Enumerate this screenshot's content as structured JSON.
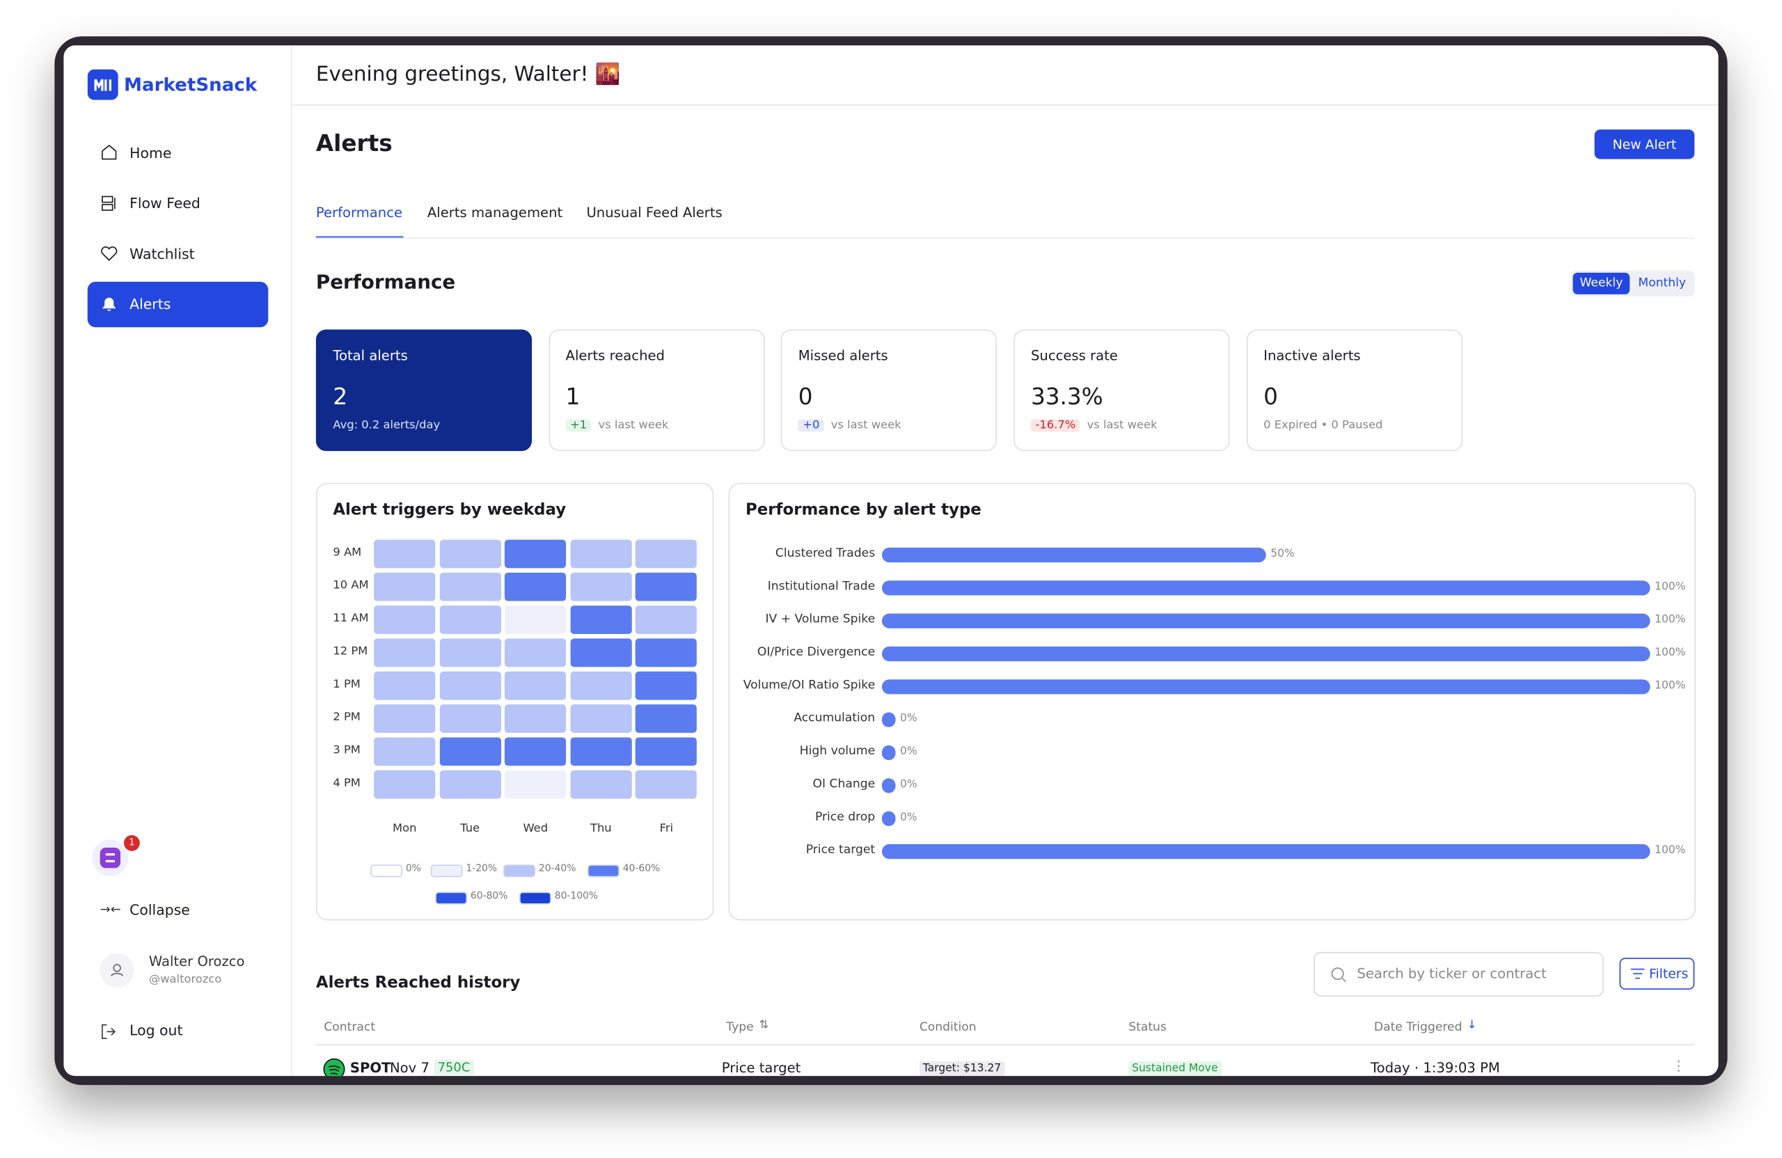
{
  "sidebar": {
    "logo": "MarketSnack",
    "nav": [
      "Home",
      "Flow Feed",
      "Watchlist",
      "Alerts"
    ],
    "badge": "1",
    "collapse": "Collapse",
    "user": {
      "name": "Walter Orozco",
      "handle": "@waltorozco"
    },
    "logout": "Log out"
  },
  "header": {
    "greeting": "Evening greetings, Walter! 🌇"
  },
  "page": {
    "title": "Alerts",
    "new_alert": "New Alert",
    "tabs": [
      "Performance",
      "Alerts management",
      "Unusual Feed Alerts"
    ]
  },
  "performance": {
    "title": "Performance",
    "toggle": [
      "Weekly",
      "Monthly"
    ],
    "cards": [
      {
        "title": "Total alerts",
        "value": "2",
        "sub": "Avg: 0.2 alerts/day"
      },
      {
        "title": "Alerts reached",
        "value": "1",
        "delta": "+1",
        "sub": "vs last week"
      },
      {
        "title": "Missed alerts",
        "value": "0",
        "delta": "+0",
        "sub": "vs last week"
      },
      {
        "title": "Success rate",
        "value": "33.3%",
        "delta": "-16.7%",
        "sub": "vs last week"
      },
      {
        "title": "Inactive alerts",
        "value": "0",
        "sub": "0 Expired • 0 Paused"
      }
    ]
  },
  "heatmap": {
    "title": "Alert triggers by weekday",
    "rows": [
      "9 AM",
      "10 AM",
      "11 AM",
      "12 PM",
      "1 PM",
      "2 PM",
      "3 PM",
      "4 PM"
    ],
    "days": [
      "Mon",
      "Tue",
      "Wed",
      "Thu",
      "Fri"
    ],
    "levels": [
      [
        2,
        2,
        3,
        2,
        2
      ],
      [
        2,
        2,
        3,
        2,
        3
      ],
      [
        2,
        2,
        1,
        3,
        2
      ],
      [
        2,
        2,
        2,
        3,
        3
      ],
      [
        2,
        2,
        2,
        2,
        3
      ],
      [
        2,
        2,
        2,
        2,
        3
      ],
      [
        2,
        3,
        3,
        3,
        3
      ],
      [
        2,
        2,
        1,
        2,
        2
      ]
    ],
    "legend": [
      {
        "label": "0%",
        "color": "#ffffff"
      },
      {
        "label": "1-20%",
        "color": "#eef1fb"
      },
      {
        "label": "20-40%",
        "color": "#b6c4f8"
      },
      {
        "label": "40-60%",
        "color": "#5a7cf0"
      },
      {
        "label": "60-80%",
        "color": "#2c52e6"
      },
      {
        "label": "80-100%",
        "color": "#1d40d6"
      }
    ]
  },
  "alert_types": {
    "title": "Performance by alert type",
    "color": "#5a7cf0",
    "categories": [
      "Clustered Trades",
      "Institutional Trade",
      "IV + Volume Spike",
      "OI/Price Divergence",
      "Volume/OI Ratio Spike",
      "Accumulation",
      "High volume",
      "OI Change",
      "Price drop",
      "Price target"
    ],
    "values": [
      50,
      100,
      100,
      100,
      100,
      0,
      0,
      0,
      0,
      100
    ],
    "value_labels": [
      "50%",
      "100%",
      "100%",
      "100%",
      "100%",
      "0%",
      "0%",
      "0%",
      "0%",
      "100%"
    ]
  },
  "history": {
    "title": "Alerts Reached history",
    "search_placeholder": "Search by ticker or contract",
    "filters": "Filters",
    "columns": [
      "Contract",
      "Type",
      "Condition",
      "Status",
      "Date Triggered"
    ],
    "rows": [
      {
        "ticker": "SPOT",
        "date": "Nov 7",
        "strike": "750C",
        "type": "Price target",
        "condition": "Target: $13.27",
        "status": "Sustained Move",
        "triggered": "Today · 1:39:03 PM"
      }
    ]
  }
}
